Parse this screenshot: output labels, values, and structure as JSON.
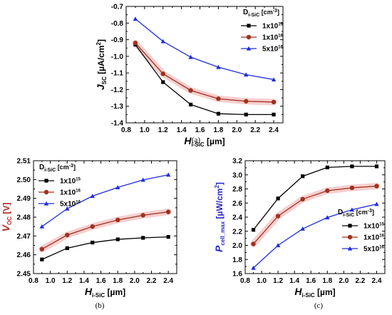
{
  "colors": {
    "black_series": "#000000",
    "red_series": "#a0301e",
    "blue_series": "#1f2ee0",
    "shade": "#f6c7c7",
    "ylabel_a": "#000000",
    "ylabel_b": "#b3261e",
    "ylabel_c": "#2828c8"
  },
  "chart_data": [
    {
      "panel": "a",
      "type": "line",
      "caption": "(a)",
      "xlabel": {
        "main": "H",
        "sub": "i-SiC",
        "unit": " [µm]"
      },
      "ylabel": {
        "main": "J",
        "sub": "SC",
        "unit": " [µA/cm",
        "sup": "2",
        "close": "]"
      },
      "xlim": [
        0.8,
        2.5
      ],
      "ylim": [
        -1.4,
        -0.7
      ],
      "xticks": [
        "0.8",
        "1.0",
        "1.2",
        "1.4",
        "1.6",
        "1.8",
        "2.0",
        "2.2",
        "2.4"
      ],
      "yticks": [
        "-1.4",
        "-1.3",
        "-1.2",
        "-1.1",
        "-1.0",
        "-0.9",
        "-0.8",
        "-0.7"
      ],
      "legend_title": {
        "main": "D",
        "sub": "i-SiC",
        "unit": " [cm",
        "sup": "-3",
        "close": "]"
      },
      "legend_position": "top-right",
      "x": [
        0.9,
        1.2,
        1.5,
        1.8,
        2.1,
        2.4
      ],
      "series": [
        {
          "name": "1x10",
          "sup": "15",
          "marker": "square",
          "color": "#000000",
          "values": [
            -0.93,
            -1.155,
            -1.29,
            -1.345,
            -1.35,
            -1.35
          ]
        },
        {
          "name": "1x10",
          "sup": "16",
          "marker": "circle",
          "color": "#a0301e",
          "values": [
            -0.92,
            -1.105,
            -1.205,
            -1.255,
            -1.27,
            -1.275
          ]
        },
        {
          "name": "5x10",
          "sup": "16",
          "marker": "triangle",
          "color": "#1f2ee0",
          "values": [
            -0.775,
            -0.91,
            -1.005,
            -1.065,
            -1.11,
            -1.14
          ]
        }
      ]
    },
    {
      "panel": "b",
      "type": "line",
      "caption": "(b)",
      "xlabel": {
        "main": "H",
        "sub": "i-SiC",
        "unit": " [µm]"
      },
      "ylabel": {
        "main": "V",
        "sub": "OC",
        "unit": " [V]",
        "sup": "",
        "close": ""
      },
      "xlim": [
        0.8,
        2.5
      ],
      "ylim": [
        2.45,
        2.51
      ],
      "xticks": [
        "0.8",
        "1.0",
        "1.2",
        "1.4",
        "1.6",
        "1.8",
        "2.0",
        "2.2",
        "2.4"
      ],
      "yticks": [
        "2.45",
        "2.46",
        "2.47",
        "2.48",
        "2.49",
        "2.50",
        "2.51"
      ],
      "legend_title": {
        "main": "D",
        "sub": "i-SiC",
        "unit": " [cm",
        "sup": "-3",
        "close": "]"
      },
      "legend_position": "top-left",
      "x": [
        0.9,
        1.2,
        1.5,
        1.8,
        2.1,
        2.4
      ],
      "series": [
        {
          "name": "1x10",
          "sup": "15",
          "marker": "square",
          "color": "#000000",
          "values": [
            2.4575,
            2.4635,
            2.4665,
            2.4682,
            2.469,
            2.4695
          ]
        },
        {
          "name": "1x10",
          "sup": "16",
          "marker": "circle",
          "color": "#a0301e",
          "values": [
            2.463,
            2.4705,
            2.475,
            2.4785,
            2.481,
            2.4828
          ]
        },
        {
          "name": "5x10",
          "sup": "16",
          "marker": "triangle",
          "color": "#1f2ee0",
          "values": [
            2.475,
            2.4845,
            2.4912,
            2.4958,
            2.4998,
            2.5025
          ]
        }
      ]
    },
    {
      "panel": "c",
      "type": "line",
      "caption": "(c)",
      "xlabel": {
        "main": "H",
        "sub": "i-SiC",
        "unit": " [µm]"
      },
      "ylabel": {
        "main": "P",
        "sub": "cell_max",
        "unit": " [µW/cm",
        "sup": "2",
        "close": "]"
      },
      "xlim": [
        0.8,
        2.5
      ],
      "ylim": [
        1.6,
        3.2
      ],
      "xticks": [
        "0.8",
        "1.0",
        "1.2",
        "1.4",
        "1.6",
        "1.8",
        "2.0",
        "2.2",
        "2.4"
      ],
      "yticks": [
        "1.6",
        "1.8",
        "2.0",
        "2.2",
        "2.4",
        "2.6",
        "2.8",
        "3.0",
        "3.2"
      ],
      "legend_title": {
        "main": "D",
        "sub": "i-SiC",
        "unit": " [cm",
        "sup": "-3",
        "close": "]"
      },
      "legend_position": "bottom-right",
      "x": [
        0.9,
        1.2,
        1.5,
        1.8,
        2.1,
        2.4
      ],
      "series": [
        {
          "name": "1x10",
          "sup": "15",
          "marker": "square",
          "color": "#000000",
          "values": [
            2.22,
            2.665,
            2.98,
            3.105,
            3.12,
            3.12
          ]
        },
        {
          "name": "1x10",
          "sup": "16",
          "marker": "circle",
          "color": "#a0301e",
          "values": [
            2.02,
            2.415,
            2.655,
            2.775,
            2.815,
            2.84
          ]
        },
        {
          "name": "5x10",
          "sup": "16",
          "marker": "triangle",
          "color": "#1f2ee0",
          "values": [
            1.68,
            2.0,
            2.235,
            2.395,
            2.505,
            2.585
          ]
        }
      ]
    }
  ]
}
